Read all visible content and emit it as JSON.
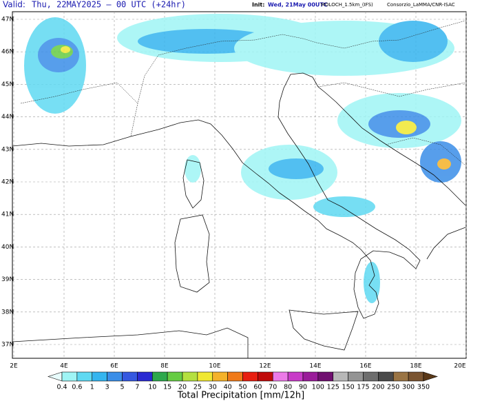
{
  "header": {
    "valid_label": "Valid:",
    "valid": "Thu, 22MAY2025 – 00 UTC (+24hr)",
    "init_label": "Init:",
    "init": "Wed, 21May 00UTC",
    "model": "MOLOCH_1.5km_(IFS)",
    "credit": "Consorzio_LaMMA/CNR-ISAC"
  },
  "map": {
    "lat_labels": [
      "47N",
      "46N",
      "45N",
      "44N",
      "43N",
      "42N",
      "41N",
      "40N",
      "39N",
      "38N",
      "37N"
    ],
    "lon_labels": [
      "2E",
      "4E",
      "6E",
      "8E",
      "10E",
      "12E",
      "14E",
      "16E",
      "18E",
      "20E"
    ]
  },
  "colorbar": {
    "title": "Total Precipitation [mm/12h]",
    "levels": [
      "0.4",
      "0.6",
      "1",
      "3",
      "5",
      "7",
      "10",
      "15",
      "20",
      "25",
      "30",
      "40",
      "50",
      "60",
      "70",
      "80",
      "90",
      "100",
      "125",
      "150",
      "175",
      "200",
      "250",
      "300",
      "350"
    ],
    "colors": [
      "#e8fcfc",
      "#9ff5f5",
      "#5fd9f2",
      "#35b5ef",
      "#3a8ee8",
      "#3558e0",
      "#2a2ad2",
      "#2ea84c",
      "#66cc44",
      "#b4e040",
      "#f0e832",
      "#f4b22a",
      "#f07a1a",
      "#e81e10",
      "#c00a0a",
      "#ec7ae8",
      "#c83cc8",
      "#9a1c9a",
      "#701070",
      "#b8b8b8",
      "#949494",
      "#6e6e6e",
      "#4a4a4a",
      "#9a7444",
      "#7a5430",
      "#5a3818"
    ]
  }
}
